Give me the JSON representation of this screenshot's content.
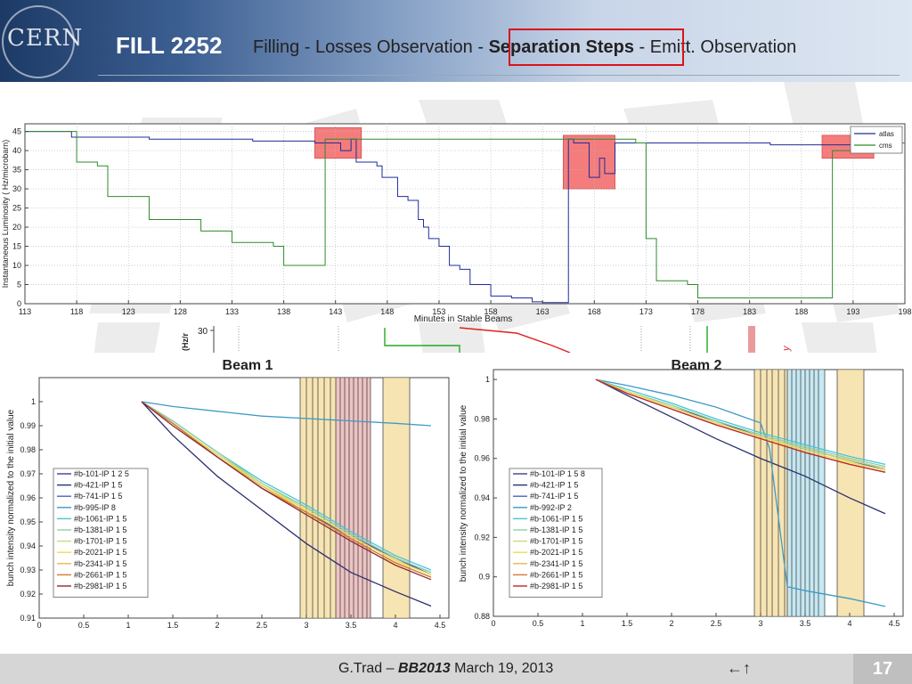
{
  "header": {
    "logo_text": "CERN",
    "fill_title": "FILL 2252",
    "nav_items": [
      {
        "label": "Filling",
        "active": false
      },
      {
        "label": "Losses Observation",
        "active": false
      },
      {
        "label": "Separation Steps",
        "active": true
      },
      {
        "label": "Emitt. Observation",
        "active": false
      }
    ],
    "nav_separator": " - ",
    "highlight_color": "#d9131b"
  },
  "footer": {
    "author": "G.Trad – ",
    "event": "BB2013",
    "date": " March 19, 2013",
    "arrows": "←↑",
    "page": "17"
  },
  "chart_data": [
    {
      "type": "line",
      "xlabel": "Minutes in Stable Beams",
      "ylabel": "Instantaneous Luminosity ( Hz/microbarn)",
      "xlim": [
        113,
        198
      ],
      "ylim": [
        0,
        47
      ],
      "x_ticks": [
        113,
        118,
        123,
        128,
        133,
        138,
        143,
        148,
        153,
        158,
        163,
        168,
        173,
        178,
        183,
        188,
        193,
        198
      ],
      "y_ticks": [
        0,
        5,
        10,
        15,
        20,
        25,
        30,
        35,
        40,
        45
      ],
      "legend_position": "top-right",
      "highlight_regions": [
        {
          "x": [
            141,
            145.5
          ],
          "y": [
            38,
            46
          ]
        },
        {
          "x": [
            165,
            170
          ],
          "y": [
            30,
            44
          ]
        },
        {
          "x": [
            190,
            195
          ],
          "y": [
            38,
            44
          ]
        }
      ],
      "series": [
        {
          "name": "atlas",
          "color": "#1f2d9a",
          "x": [
            113,
            117,
            117.5,
            125,
            135,
            141,
            142,
            143.5,
            144.5,
            145,
            146,
            147,
            147.5,
            148.5,
            149,
            150,
            151,
            151.5,
            152,
            153,
            154,
            155,
            156,
            158,
            160,
            162,
            163,
            164,
            165,
            165.5,
            166,
            167,
            167.5,
            168.5,
            169,
            170,
            172,
            178,
            185,
            190,
            194,
            198
          ],
          "y": [
            45,
            45,
            43.5,
            43,
            42.5,
            42,
            42,
            40,
            43,
            37,
            37,
            36,
            33,
            33,
            28,
            27,
            22,
            20,
            17,
            15,
            10,
            9,
            5,
            2,
            1.5,
            0.5,
            0.3,
            0.3,
            0.3,
            43,
            42,
            42,
            33,
            38,
            34,
            42,
            42,
            42,
            41.5,
            41.5,
            42,
            42
          ]
        },
        {
          "name": "cms",
          "color": "#2e8b2e",
          "x": [
            113,
            117,
            118,
            120,
            121,
            124,
            125,
            129,
            130,
            133,
            134,
            137,
            138,
            140,
            141,
            142,
            143,
            172,
            173,
            174,
            177,
            178,
            182,
            190,
            191,
            194,
            198
          ],
          "y": [
            45,
            45,
            37,
            36,
            28,
            28,
            22,
            22,
            19,
            16,
            16,
            15,
            10,
            10,
            10,
            43,
            43,
            42,
            17,
            6,
            5,
            1.5,
            1.5,
            1.5,
            40,
            42,
            42
          ]
        }
      ]
    },
    {
      "type": "line",
      "title": "Beam 1",
      "xlabel": "",
      "ylabel": "bunch intensity normalized to the initial value",
      "xlim": [
        0,
        4.6
      ],
      "ylim": [
        0.91,
        1.01
      ],
      "x_ticks": [
        0,
        0.5,
        1,
        1.5,
        2,
        2.5,
        3,
        3.5,
        4,
        4.5
      ],
      "y_ticks": [
        0.91,
        0.92,
        0.93,
        0.94,
        0.95,
        0.96,
        0.97,
        0.98,
        0.99,
        1
      ],
      "legend_position": "bottom-left",
      "shaded_bands": [
        {
          "x": [
            2.93,
            3.33
          ],
          "color": "#f3d58a"
        },
        {
          "x": [
            3.33,
            3.72
          ],
          "color": "#e4a3a3"
        },
        {
          "x": [
            3.86,
            4.16
          ],
          "color": "#f3d58a"
        }
      ],
      "step_lines": [
        2.93,
        3.0,
        3.07,
        3.13,
        3.2,
        3.27,
        3.33,
        3.38,
        3.43,
        3.48,
        3.53,
        3.58,
        3.63,
        3.68,
        3.72,
        3.86,
        4.16
      ],
      "series": [
        {
          "name": "#b-101-IP 1 2 5",
          "color": "#3b3f9c",
          "x": [
            1.15,
            1.5,
            2,
            2.5,
            3,
            3.5,
            4,
            4.4
          ],
          "y": [
            1,
            0.991,
            0.977,
            0.964,
            0.954,
            0.944,
            0.935,
            0.928
          ]
        },
        {
          "name": "#b-421-IP 1 5",
          "color": "#2a2f6e",
          "x": [
            1.15,
            1.5,
            2,
            2.5,
            3,
            3.5,
            4,
            4.4
          ],
          "y": [
            1,
            0.986,
            0.969,
            0.955,
            0.941,
            0.929,
            0.921,
            0.915
          ]
        },
        {
          "name": "#b-741-IP 1 5",
          "color": "#4666b8",
          "x": [
            1.15,
            1.5,
            2,
            2.5,
            3,
            3.5,
            4,
            4.4
          ],
          "y": [
            1,
            0.991,
            0.978,
            0.966,
            0.956,
            0.945,
            0.935,
            0.929
          ]
        },
        {
          "name": "#b-995-IP 8",
          "color": "#3d9bc7",
          "x": [
            1.15,
            1.5,
            2,
            2.5,
            3,
            3.5,
            4,
            4.4
          ],
          "y": [
            1,
            0.998,
            0.996,
            0.994,
            0.993,
            0.992,
            0.991,
            0.99
          ]
        },
        {
          "name": "#b-1061-IP 1 5",
          "color": "#45c6d8",
          "x": [
            1.15,
            1.5,
            2,
            2.5,
            3,
            3.5,
            4,
            4.4
          ],
          "y": [
            1,
            0.992,
            0.979,
            0.967,
            0.957,
            0.946,
            0.936,
            0.93
          ]
        },
        {
          "name": "#b-1381-IP 1 5",
          "color": "#8fd0a8",
          "x": [
            1.15,
            1.5,
            2,
            2.5,
            3,
            3.5,
            4,
            4.4
          ],
          "y": [
            1,
            0.992,
            0.979,
            0.966,
            0.956,
            0.945,
            0.935,
            0.929
          ]
        },
        {
          "name": "#b-1701-IP 1 5",
          "color": "#c9d97a",
          "x": [
            1.15,
            1.5,
            2,
            2.5,
            3,
            3.5,
            4,
            4.4
          ],
          "y": [
            1,
            0.991,
            0.978,
            0.966,
            0.955,
            0.944,
            0.934,
            0.928
          ]
        },
        {
          "name": "#b-2021-IP 1 5",
          "color": "#e8e052",
          "x": [
            1.15,
            1.5,
            2,
            2.5,
            3,
            3.5,
            4,
            4.4
          ],
          "y": [
            1,
            0.991,
            0.978,
            0.965,
            0.955,
            0.944,
            0.934,
            0.928
          ]
        },
        {
          "name": "#b-2341-IP 1 5",
          "color": "#e5b84a",
          "x": [
            1.15,
            1.5,
            2,
            2.5,
            3,
            3.5,
            4,
            4.4
          ],
          "y": [
            1,
            0.991,
            0.977,
            0.965,
            0.954,
            0.943,
            0.933,
            0.927
          ]
        },
        {
          "name": "#b-2661-IP 1 5",
          "color": "#d6783a",
          "x": [
            1.15,
            1.5,
            2,
            2.5,
            3,
            3.5,
            4,
            4.4
          ],
          "y": [
            1,
            0.991,
            0.977,
            0.964,
            0.954,
            0.943,
            0.933,
            0.927
          ]
        },
        {
          "name": "#b-2981-IP 1 5",
          "color": "#8c2c2c",
          "x": [
            1.15,
            1.5,
            2,
            2.5,
            3,
            3.5,
            4,
            4.4
          ],
          "y": [
            1,
            0.99,
            0.977,
            0.964,
            0.953,
            0.942,
            0.932,
            0.926
          ]
        }
      ]
    },
    {
      "type": "line",
      "title": "Beam 2",
      "xlabel": "",
      "ylabel": "bunch intensity normalized to the initial value",
      "xlim": [
        0,
        4.6
      ],
      "ylim": [
        0.88,
        1.005
      ],
      "x_ticks": [
        0,
        0.5,
        1,
        1.5,
        2,
        2.5,
        3,
        3.5,
        4,
        4.5
      ],
      "y_ticks": [
        0.88,
        0.9,
        0.92,
        0.94,
        0.96,
        0.98,
        1
      ],
      "legend_position": "bottom-left",
      "shaded_bands": [
        {
          "x": [
            2.93,
            3.3
          ],
          "color": "#f3d58a"
        },
        {
          "x": [
            3.3,
            3.72
          ],
          "color": "#a8dceb"
        },
        {
          "x": [
            3.86,
            4.16
          ],
          "color": "#f3d58a"
        }
      ],
      "step_lines": [
        2.93,
        3.0,
        3.07,
        3.13,
        3.2,
        3.27,
        3.3,
        3.35,
        3.4,
        3.45,
        3.5,
        3.55,
        3.6,
        3.65,
        3.72,
        3.86,
        4.16
      ],
      "series": [
        {
          "name": "#b-101-IP 1 5 8",
          "color": "#3b3f9c",
          "x": [
            1.15,
            1.5,
            2,
            2.5,
            3,
            3.5,
            4,
            4.4
          ],
          "y": [
            1,
            0.994,
            0.986,
            0.979,
            0.971,
            0.965,
            0.959,
            0.955
          ]
        },
        {
          "name": "#b-421-IP 1 5",
          "color": "#2a2f6e",
          "x": [
            1.15,
            1.5,
            2,
            2.5,
            3,
            3.5,
            4,
            4.4
          ],
          "y": [
            1,
            0.992,
            0.981,
            0.97,
            0.96,
            0.951,
            0.94,
            0.932
          ]
        },
        {
          "name": "#b-741-IP 1 5",
          "color": "#4666b8",
          "x": [
            1.15,
            1.5,
            2,
            2.5,
            3,
            3.5,
            4,
            4.4
          ],
          "y": [
            1,
            0.994,
            0.986,
            0.978,
            0.971,
            0.965,
            0.959,
            0.954
          ]
        },
        {
          "name": "#b-992-IP 2",
          "color": "#3d9bc7",
          "x": [
            1.15,
            1.5,
            2,
            2.5,
            3,
            3.1,
            3.2,
            3.3,
            3.5,
            4,
            4.4
          ],
          "y": [
            1,
            0.997,
            0.992,
            0.986,
            0.978,
            0.965,
            0.93,
            0.895,
            0.893,
            0.889,
            0.885
          ]
        },
        {
          "name": "#b-1061-IP 1 5",
          "color": "#45c6d8",
          "x": [
            1.15,
            1.5,
            2,
            2.5,
            3,
            3.5,
            4,
            4.4
          ],
          "y": [
            1,
            0.995,
            0.988,
            0.98,
            0.973,
            0.967,
            0.961,
            0.957
          ]
        },
        {
          "name": "#b-1381-IP 1 5",
          "color": "#8fd0a8",
          "x": [
            1.15,
            1.5,
            2,
            2.5,
            3,
            3.5,
            4,
            4.4
          ],
          "y": [
            1,
            0.994,
            0.987,
            0.979,
            0.972,
            0.966,
            0.96,
            0.956
          ]
        },
        {
          "name": "#b-1701-IP 1 5",
          "color": "#c9d97a",
          "x": [
            1.15,
            1.5,
            2,
            2.5,
            3,
            3.5,
            4,
            4.4
          ],
          "y": [
            1,
            0.994,
            0.986,
            0.978,
            0.971,
            0.965,
            0.959,
            0.955
          ]
        },
        {
          "name": "#b-2021-IP 1 5",
          "color": "#e8e052",
          "x": [
            1.15,
            1.5,
            2,
            2.5,
            3,
            3.5,
            4,
            4.4
          ],
          "y": [
            1,
            0.994,
            0.986,
            0.978,
            0.971,
            0.964,
            0.958,
            0.954
          ]
        },
        {
          "name": "#b-2341-IP 1 5",
          "color": "#e5b84a",
          "x": [
            1.15,
            1.5,
            2,
            2.5,
            3,
            3.5,
            4,
            4.4
          ],
          "y": [
            1,
            0.993,
            0.985,
            0.977,
            0.97,
            0.963,
            0.957,
            0.953
          ]
        },
        {
          "name": "#b-2661-IP 1 5",
          "color": "#d6783a",
          "x": [
            1.15,
            1.5,
            2,
            2.5,
            3,
            3.5,
            4,
            4.4
          ],
          "y": [
            1,
            0.993,
            0.985,
            0.977,
            0.97,
            0.963,
            0.957,
            0.953
          ]
        },
        {
          "name": "#b-2981-IP 1 5",
          "color": "#c0282d",
          "x": [
            1.15,
            1.5,
            2,
            2.5,
            3,
            3.5,
            4,
            4.4
          ],
          "y": [
            1,
            0.993,
            0.985,
            0.977,
            0.97,
            0.963,
            0.957,
            0.953
          ]
        }
      ]
    }
  ],
  "residual_strip": {
    "axis_label": "(Hz/r",
    "tick_label": "30",
    "corner_glyph": "y",
    "colors": [
      "#22aa22",
      "#e02020",
      "#e07070"
    ]
  }
}
